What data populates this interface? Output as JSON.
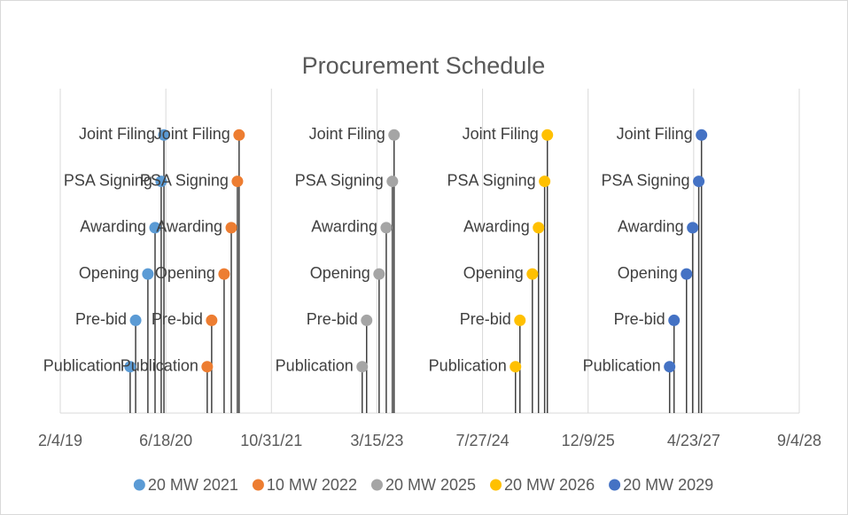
{
  "chart_data": {
    "type": "scatter",
    "title": "Procurement Schedule",
    "xlim": [
      43500,
      47000
    ],
    "xticks": [
      {
        "value": 43500,
        "label": "2/4/19"
      },
      {
        "value": 44000,
        "label": "6/18/20"
      },
      {
        "value": 44500,
        "label": "10/31/21"
      },
      {
        "value": 45000,
        "label": "3/15/23"
      },
      {
        "value": 45500,
        "label": "7/27/24"
      },
      {
        "value": 46000,
        "label": "12/9/25"
      },
      {
        "value": 46500,
        "label": "4/23/27"
      },
      {
        "value": 47000,
        "label": "9/4/28"
      }
    ],
    "ylim": [
      0,
      7
    ],
    "grid": true,
    "drop_lines": true,
    "legend": "bottom",
    "series": [
      {
        "name": "20 MW 2021",
        "color": "#5B9BD5",
        "x": [
          43831,
          43857,
          43915,
          43949,
          43978,
          43991
        ],
        "values": [
          1,
          2,
          3,
          4,
          5,
          6
        ],
        "labels": [
          "Publication",
          "Pre-bid",
          "Opening",
          "Awarding",
          "PSA Signing",
          "Joint Filing"
        ]
      },
      {
        "name": "10 MW 2022",
        "color": "#ED7D31",
        "x": [
          44196,
          44217,
          44276,
          44310,
          44339,
          44347
        ],
        "values": [
          1,
          2,
          3,
          4,
          5,
          6
        ],
        "labels": [
          "Publication",
          "Pre-bid",
          "Opening",
          "Awarding",
          "PSA Signing",
          "Joint Filing"
        ]
      },
      {
        "name": "20 MW 2025",
        "color": "#A5A5A5",
        "x": [
          44930,
          44951,
          45010,
          45044,
          45073,
          45081
        ],
        "values": [
          1,
          2,
          3,
          4,
          5,
          6
        ],
        "labels": [
          "Publication",
          "Pre-bid",
          "Opening",
          "Awarding",
          "PSA Signing",
          "Joint Filing"
        ]
      },
      {
        "name": "20 MW 2026",
        "color": "#FFC000",
        "x": [
          45656,
          45677,
          45736,
          45765,
          45794,
          45807
        ],
        "values": [
          1,
          2,
          3,
          4,
          5,
          6
        ],
        "labels": [
          "Publication",
          "Pre-bid",
          "Opening",
          "Awarding",
          "PSA Signing",
          "Joint Filing"
        ]
      },
      {
        "name": "20 MW 2029",
        "color": "#4472C4",
        "x": [
          46386,
          46407,
          46466,
          46495,
          46524,
          46537
        ],
        "values": [
          1,
          2,
          3,
          4,
          5,
          6
        ],
        "labels": [
          "Publication",
          "Pre-bid",
          "Opening",
          "Awarding",
          "PSA Signing",
          "Joint Filing"
        ]
      }
    ]
  }
}
